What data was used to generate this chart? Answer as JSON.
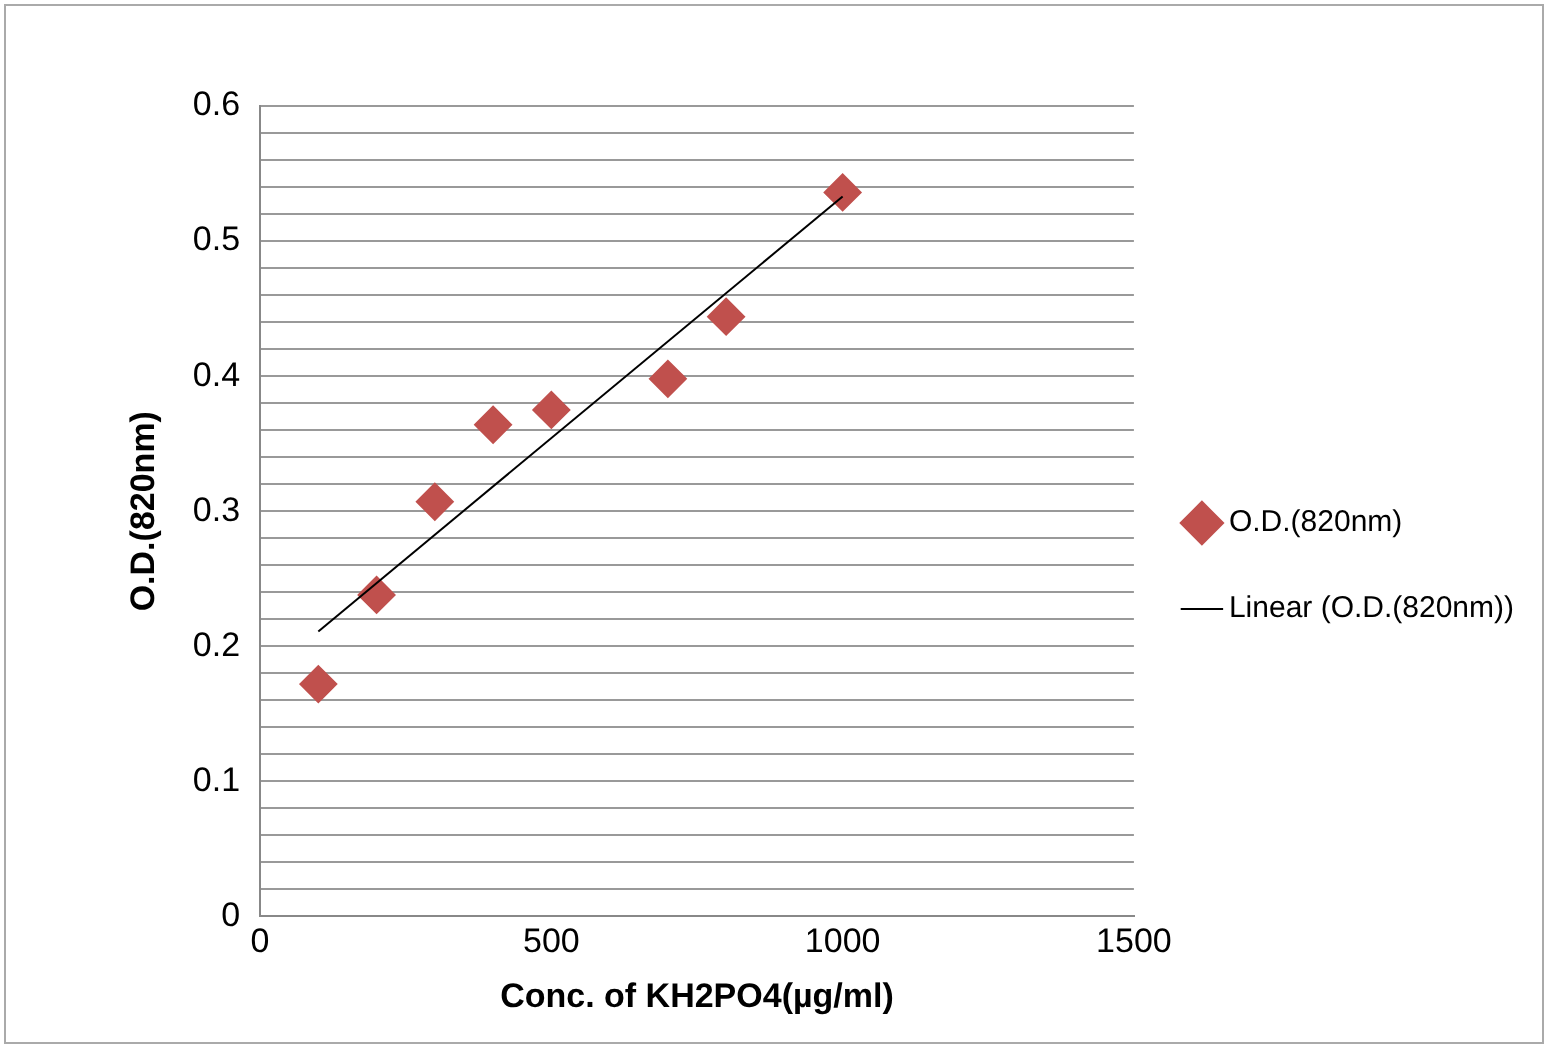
{
  "chart_data": {
    "type": "scatter",
    "xlabel": "Conc. of KH2PO4(µg/ml)",
    "ylabel": "O.D.(820nm)",
    "xlim": [
      0,
      1500
    ],
    "xticks": [
      0,
      500,
      1000,
      1500
    ],
    "ylim": [
      0,
      0.6
    ],
    "yticks": [
      0,
      {
        "value": 0.02,
        "label": null
      },
      {
        "value": 0.04,
        "label": null
      },
      {
        "value": 0.06,
        "label": null
      },
      {
        "value": 0.08,
        "label": null
      },
      0.1,
      {
        "value": 0.12,
        "label": null
      },
      {
        "value": 0.14,
        "label": null
      },
      {
        "value": 0.16,
        "label": null
      },
      {
        "value": 0.18,
        "label": null
      },
      0.2,
      {
        "value": 0.22,
        "label": null
      },
      {
        "value": 0.24,
        "label": null
      },
      {
        "value": 0.26,
        "label": null
      },
      {
        "value": 0.28,
        "label": null
      },
      0.3,
      {
        "value": 0.32,
        "label": null
      },
      {
        "value": 0.34,
        "label": null
      },
      {
        "value": 0.36,
        "label": null
      },
      {
        "value": 0.38,
        "label": null
      },
      0.4,
      {
        "value": 0.42,
        "label": null
      },
      {
        "value": 0.44,
        "label": null
      },
      {
        "value": 0.46,
        "label": null
      },
      {
        "value": 0.48,
        "label": null
      },
      0.5,
      {
        "value": 0.52,
        "label": null
      },
      {
        "value": 0.54,
        "label": null
      },
      {
        "value": 0.56,
        "label": null
      },
      {
        "value": 0.58,
        "label": null
      },
      0.6
    ],
    "grid": "y",
    "legend": "right",
    "marker": "diamond",
    "x": [
      100,
      200,
      300,
      400,
      500,
      700,
      800,
      1000
    ],
    "series": [
      {
        "name": "O.D.(820nm)",
        "color": "#c0504d",
        "values": [
          0.172,
          0.238,
          0.307,
          0.364,
          0.375,
          0.398,
          0.444,
          0.536
        ]
      },
      {
        "name": "Linear (O.D.(820nm))",
        "type": "line",
        "color": "#000000",
        "x": [
          100,
          1000
        ],
        "values": [
          0.211,
          0.533
        ],
        "marker": "none"
      }
    ]
  }
}
